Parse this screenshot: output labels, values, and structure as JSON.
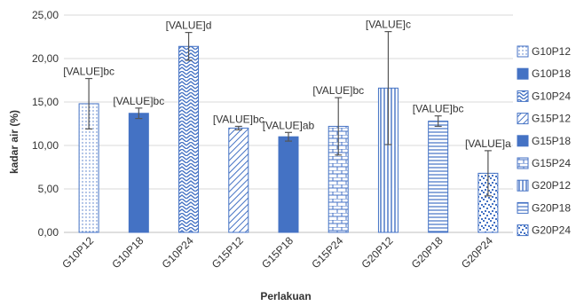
{
  "chart_data": {
    "type": "bar",
    "title": "",
    "xlabel": "Perlakuan",
    "ylabel": "kadar air (%)",
    "ylim": [
      0,
      25
    ],
    "yticks": [
      "0,00",
      "5,00",
      "10,00",
      "15,00",
      "20,00",
      "25,00"
    ],
    "grid": true,
    "legend_position": "right",
    "categories": [
      "G10P12",
      "G10P18",
      "G10P24",
      "G15P12",
      "G15P18",
      "G15P24",
      "G20P12",
      "G20P18",
      "G20P24"
    ],
    "values": [
      14.8,
      13.7,
      21.4,
      12.0,
      11.0,
      12.2,
      16.6,
      12.8,
      6.8
    ],
    "errors": [
      2.9,
      0.6,
      1.6,
      0.2,
      0.5,
      3.3,
      6.5,
      0.6,
      2.6
    ],
    "data_labels": [
      "[VALUE]bc",
      "[VALUE]bc",
      "[VALUE]d",
      "[VALUE]bc",
      "[VALUE]ab",
      "[VALUE]bc",
      "[VALUE]c",
      "[VALUE]bc",
      "[VALUE]a"
    ],
    "patterns": [
      "dots",
      "solid",
      "zigzag",
      "diag",
      "solid",
      "brick",
      "vlines",
      "hlines",
      "confetti"
    ],
    "colors": {
      "bar": "#4472c4",
      "error": "#555555",
      "grid": "#d9d9d9",
      "axis": "#bfbfbf"
    },
    "legend": [
      "G10P12",
      "G10P18",
      "G10P24",
      "G15P12",
      "G15P18",
      "G15P24",
      "G20P12",
      "G20P18",
      "G20P24"
    ]
  }
}
